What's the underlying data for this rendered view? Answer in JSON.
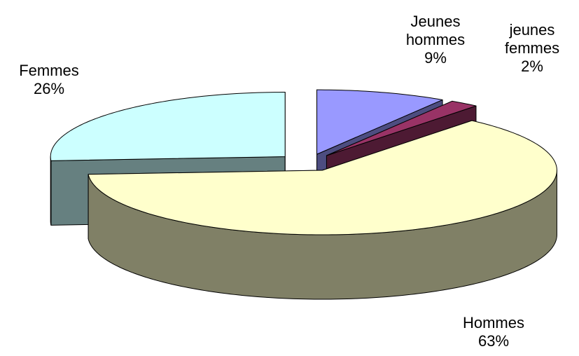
{
  "chart_data": {
    "type": "pie",
    "categories": [
      "Jeunes hommes",
      "jeunes femmes",
      "Hommes",
      "Femmes"
    ],
    "values": [
      9,
      2,
      63,
      26
    ],
    "value_labels": [
      "9%",
      "2%",
      "63%",
      "26%"
    ],
    "colors": [
      "#9999ff",
      "#993366",
      "#ffffcc",
      "#ccffff"
    ],
    "three_d": true,
    "exploded": true
  }
}
